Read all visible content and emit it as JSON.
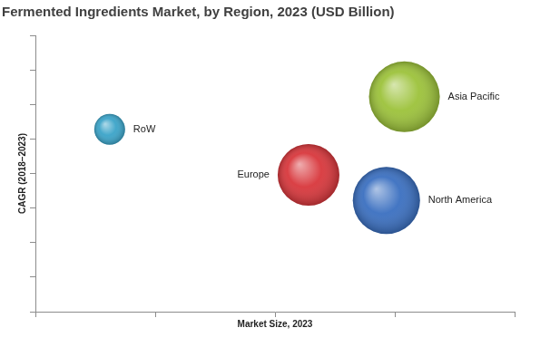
{
  "chart_data": {
    "type": "bubble",
    "title": "Fermented Ingredients Market, by Region, 2023 (USD Billion)",
    "x_label": "Market Size, 2023",
    "y_label": "CAGR (2018–2023)",
    "series": [
      {
        "name": "RoW",
        "color": "#3aa3c8",
        "x": 0.62,
        "y": 5.28,
        "size": 17
      },
      {
        "name": "Europe",
        "color": "#d8363b",
        "x": 2.28,
        "y": 3.96,
        "size": 34
      },
      {
        "name": "North America",
        "color": "#3a6fc0",
        "x": 2.93,
        "y": 3.22,
        "size": 37
      },
      {
        "name": "Asia Pacific",
        "color": "#9cc23a",
        "x": 3.08,
        "y": 6.22,
        "size": 39
      }
    ],
    "xlim": [
      0,
      4
    ],
    "xticks": [
      0,
      1,
      2,
      3,
      4
    ],
    "ylim": [
      0,
      8
    ],
    "yticks": [
      0,
      1,
      2,
      3,
      4,
      5,
      6,
      7,
      8
    ],
    "grid": false,
    "tick_labels": false
  }
}
